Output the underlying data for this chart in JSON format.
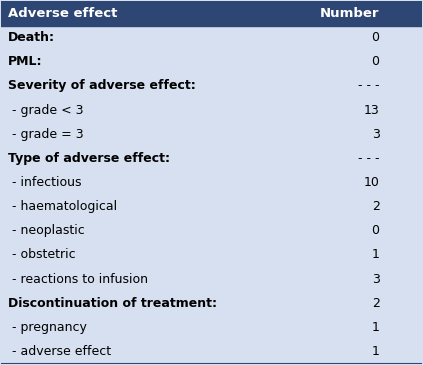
{
  "header": [
    "Adverse effect",
    "Number"
  ],
  "rows": [
    {
      "label": "Death:",
      "value": "0",
      "bold": true,
      "indent": false
    },
    {
      "label": "PML:",
      "value": "0",
      "bold": true,
      "indent": false
    },
    {
      "label": "Severity of adverse effect:",
      "value": "- - -",
      "bold": true,
      "indent": false
    },
    {
      "label": " - grade < 3",
      "value": "13",
      "bold": false,
      "indent": true
    },
    {
      "label": " - grade = 3",
      "value": "3",
      "bold": false,
      "indent": true
    },
    {
      "label": "Type of adverse effect:",
      "value": "- - -",
      "bold": true,
      "indent": false
    },
    {
      "label": " - infectious",
      "value": "10",
      "bold": false,
      "indent": true
    },
    {
      "label": " - haematological",
      "value": "2",
      "bold": false,
      "indent": true
    },
    {
      "label": " - neoplastic",
      "value": "0",
      "bold": false,
      "indent": true
    },
    {
      "label": " - obstetric",
      "value": "1",
      "bold": false,
      "indent": true
    },
    {
      "label": " - reactions to infusion",
      "value": "3",
      "bold": false,
      "indent": true
    },
    {
      "label": "Discontinuation of treatment:",
      "value": "2",
      "bold": true,
      "indent": false
    },
    {
      "label": " - pregnancy",
      "value": "1",
      "bold": false,
      "indent": true
    },
    {
      "label": " - adverse effect",
      "value": "1",
      "bold": false,
      "indent": true
    }
  ],
  "header_bg": "#2E4674",
  "header_text_color": "#FFFFFF",
  "body_bg": "#D6E0F0",
  "body_text_color": "#000000",
  "fig_width": 4.23,
  "fig_height": 3.65,
  "dpi": 100
}
